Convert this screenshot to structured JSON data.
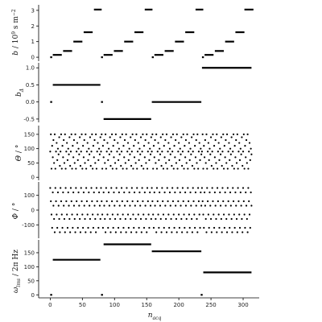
{
  "chart_data": [
    {
      "type": "scatter",
      "panel": "b",
      "ylabel": "b / 10⁹ s m⁻²",
      "ylim": [
        -0.15,
        3.25
      ],
      "yticks": [
        0,
        1,
        2,
        3
      ],
      "y_tick_labels": [
        "0",
        "1",
        "2",
        "3"
      ],
      "segments": [
        {
          "x": [
            0,
            3
          ],
          "y": 0
        },
        {
          "x": [
            4,
            18
          ],
          "y": 0.15
        },
        {
          "x": [
            20,
            34
          ],
          "y": 0.4
        },
        {
          "x": [
            36,
            50
          ],
          "y": 1.0
        },
        {
          "x": [
            52,
            66
          ],
          "y": 1.6
        },
        {
          "x": [
            68,
            80
          ],
          "y": 3.05
        },
        {
          "x": [
            79,
            82
          ],
          "y": 0
        },
        {
          "x": [
            83,
            97
          ],
          "y": 0.15
        },
        {
          "x": [
            99,
            113
          ],
          "y": 0.4
        },
        {
          "x": [
            115,
            129
          ],
          "y": 1.0
        },
        {
          "x": [
            131,
            145
          ],
          "y": 1.6
        },
        {
          "x": [
            147,
            159
          ],
          "y": 3.05
        },
        {
          "x": [
            158,
            161
          ],
          "y": 0
        },
        {
          "x": [
            162,
            176
          ],
          "y": 0.15
        },
        {
          "x": [
            178,
            192
          ],
          "y": 0.4
        },
        {
          "x": [
            194,
            208
          ],
          "y": 1.0
        },
        {
          "x": [
            210,
            224
          ],
          "y": 1.6
        },
        {
          "x": [
            226,
            238
          ],
          "y": 3.05
        },
        {
          "x": [
            236,
            239
          ],
          "y": 0
        },
        {
          "x": [
            240,
            254
          ],
          "y": 0.15
        },
        {
          "x": [
            256,
            270
          ],
          "y": 0.4
        },
        {
          "x": [
            272,
            286
          ],
          "y": 1.0
        },
        {
          "x": [
            288,
            302
          ],
          "y": 1.6
        },
        {
          "x": [
            302,
            316
          ],
          "y": 3.05
        }
      ]
    },
    {
      "type": "scatter",
      "panel": "bdelta",
      "ylabel": "b_Δ",
      "ylim": [
        -0.55,
        1.1
      ],
      "yticks": [
        -0.5,
        0,
        0.5,
        1
      ],
      "y_tick_labels": [
        "-0.5",
        "0.0",
        "0.5",
        "1.0"
      ],
      "segments": [
        {
          "x": [
            0,
            3
          ],
          "y": 0
        },
        {
          "x": [
            4,
            78
          ],
          "y": 0.5
        },
        {
          "x": [
            79,
            82
          ],
          "y": 0
        },
        {
          "x": [
            83,
            157
          ],
          "y": -0.5
        },
        {
          "x": [
            158,
            235
          ],
          "y": 0
        },
        {
          "x": [
            236,
            313
          ],
          "y": 1.0
        }
      ]
    },
    {
      "type": "scatter",
      "panel": "theta",
      "ylabel": "Θ / °",
      "ylim": [
        -5,
        175
      ],
      "yticks": [
        0,
        50,
        100,
        150
      ],
      "y_tick_labels": [
        "0",
        "50",
        "100",
        "150"
      ],
      "pattern": [
        90,
        150,
        30,
        110,
        70,
        130,
        50,
        150,
        30,
        90,
        120,
        60,
        100,
        80,
        140,
        40
      ],
      "ranges": [
        [
          0,
          78
        ],
        [
          79,
          157
        ],
        [
          158,
          235
        ],
        [
          236,
          313
        ]
      ]
    },
    {
      "type": "scatter",
      "panel": "phi",
      "ylabel": "Φ / °",
      "ylim": [
        -180,
        180
      ],
      "yticks": [
        -100,
        0,
        100
      ],
      "y_tick_labels": [
        "-100",
        "0",
        "100"
      ],
      "pattern": [
        150,
        60,
        -30,
        -120,
        120,
        30,
        -60,
        -150
      ],
      "ranges": [
        [
          0,
          78
        ],
        [
          79,
          157
        ],
        [
          158,
          235
        ],
        [
          236,
          313
        ]
      ]
    },
    {
      "type": "scatter",
      "panel": "omega",
      "ylabel": "ω_lms / 2π Hz",
      "ylim": [
        -5,
        190
      ],
      "yticks": [
        0,
        50,
        100,
        150
      ],
      "y_tick_labels": [
        "0",
        "50",
        "100",
        "150"
      ],
      "segments": [
        {
          "x": [
            0,
            3
          ],
          "y": 0
        },
        {
          "x": [
            4,
            78
          ],
          "y": 125
        },
        {
          "x": [
            79,
            82
          ],
          "y": 0
        },
        {
          "x": [
            83,
            157
          ],
          "y": 180
        },
        {
          "x": [
            158,
            235
          ],
          "y": 155
        },
        {
          "x": [
            234,
            237
          ],
          "y": 0
        },
        {
          "x": [
            238,
            313
          ],
          "y": 80
        }
      ]
    }
  ],
  "x_axis": {
    "label": "n_acq",
    "xlim": [
      -8,
      320
    ],
    "ticks": [
      0,
      50,
      100,
      150,
      200,
      250,
      300
    ],
    "tick_labels": [
      "0",
      "50",
      "100",
      "150",
      "200",
      "250",
      "300"
    ]
  },
  "colors": {
    "marks": "#000000",
    "axis": "#000000",
    "background": "#ffffff"
  }
}
